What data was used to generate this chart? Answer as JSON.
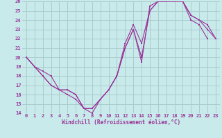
{
  "xlabel": "Windchill (Refroidissement éolien,°C)",
  "bg_color": "#c8eaea",
  "grid_color": "#aacccc",
  "line_color": "#993399",
  "ylim": [
    14,
    26
  ],
  "xlim": [
    -0.5,
    23.5
  ],
  "yticks": [
    14,
    15,
    16,
    17,
    18,
    19,
    20,
    21,
    22,
    23,
    24,
    25,
    26
  ],
  "xticks": [
    0,
    1,
    2,
    3,
    4,
    5,
    6,
    7,
    8,
    9,
    10,
    11,
    12,
    13,
    14,
    15,
    16,
    17,
    18,
    19,
    20,
    21,
    22,
    23
  ],
  "series": [
    {
      "x": [
        0,
        1,
        2,
        3,
        4,
        5,
        6,
        7,
        8,
        9,
        10,
        11,
        12,
        13,
        14,
        15,
        16,
        17,
        18,
        19,
        20,
        21,
        22
      ],
      "y": [
        20,
        19,
        18,
        17,
        16.5,
        16.5,
        16,
        14.5,
        14.5,
        15.5,
        16.5,
        18,
        21,
        23,
        19.5,
        25.5,
        26,
        26,
        26,
        26,
        24,
        23.5,
        22
      ]
    },
    {
      "x": [
        0,
        1,
        2,
        3,
        4,
        5,
        6,
        7,
        8,
        9,
        10,
        11,
        12,
        13,
        14,
        15,
        16,
        17,
        18,
        19,
        20,
        21,
        22,
        23
      ],
      "y": [
        20,
        19,
        18.5,
        18,
        16.5,
        16.5,
        16,
        14.5,
        14.5,
        15.5,
        16.5,
        18,
        21.5,
        23.5,
        21.5,
        25,
        26,
        26,
        26.5,
        26,
        24.5,
        24,
        23.5,
        22
      ]
    },
    {
      "x": [
        0,
        1,
        2,
        3,
        4,
        5,
        6,
        7,
        8,
        9,
        10,
        11,
        12,
        13,
        14,
        15,
        16,
        17,
        18,
        19,
        20,
        21,
        22,
        23
      ],
      "y": [
        20,
        19,
        18,
        17,
        16.5,
        16,
        15.5,
        14.5,
        14,
        15.5,
        16.5,
        18,
        21,
        23,
        20,
        25,
        26,
        26,
        26,
        26,
        24.5,
        24,
        23,
        22
      ]
    }
  ]
}
